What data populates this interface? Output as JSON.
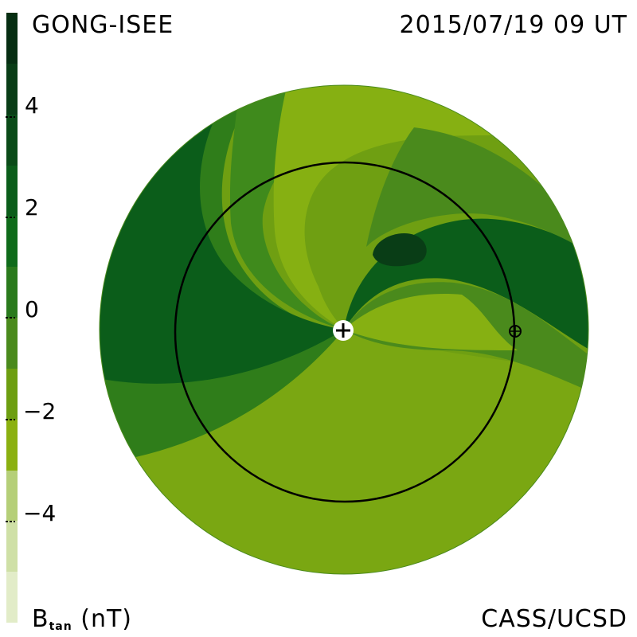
{
  "header": {
    "source": "GONG-ISEE",
    "datetime": "2015/07/19 09 UT"
  },
  "footer": {
    "credit": "CASS/UCSD",
    "unit_symbol": "B",
    "unit_subscript": "tan",
    "unit": "(nT)"
  },
  "colorbar": {
    "ticks": [
      "4",
      "2",
      "0",
      "−2",
      "−4"
    ],
    "colors": [
      "#062e12",
      "#093d16",
      "#0a4b18",
      "#0b5d1a",
      "#0f6b1a",
      "#2a7a1c",
      "#4a8a1c",
      "#6d9e10",
      "#8bb010",
      "#b5cf78",
      "#cfe0a6",
      "#e2ecc8"
    ]
  },
  "map": {
    "center_marker": "sun-marker",
    "earth_marker": "earth-marker",
    "colors": {
      "dark_green": "#0b5d1a",
      "mid_green": "#4a8a1c",
      "light_green": "#8bb010",
      "pale_green": "#a5c34a",
      "darkest": "#093d16"
    }
  }
}
